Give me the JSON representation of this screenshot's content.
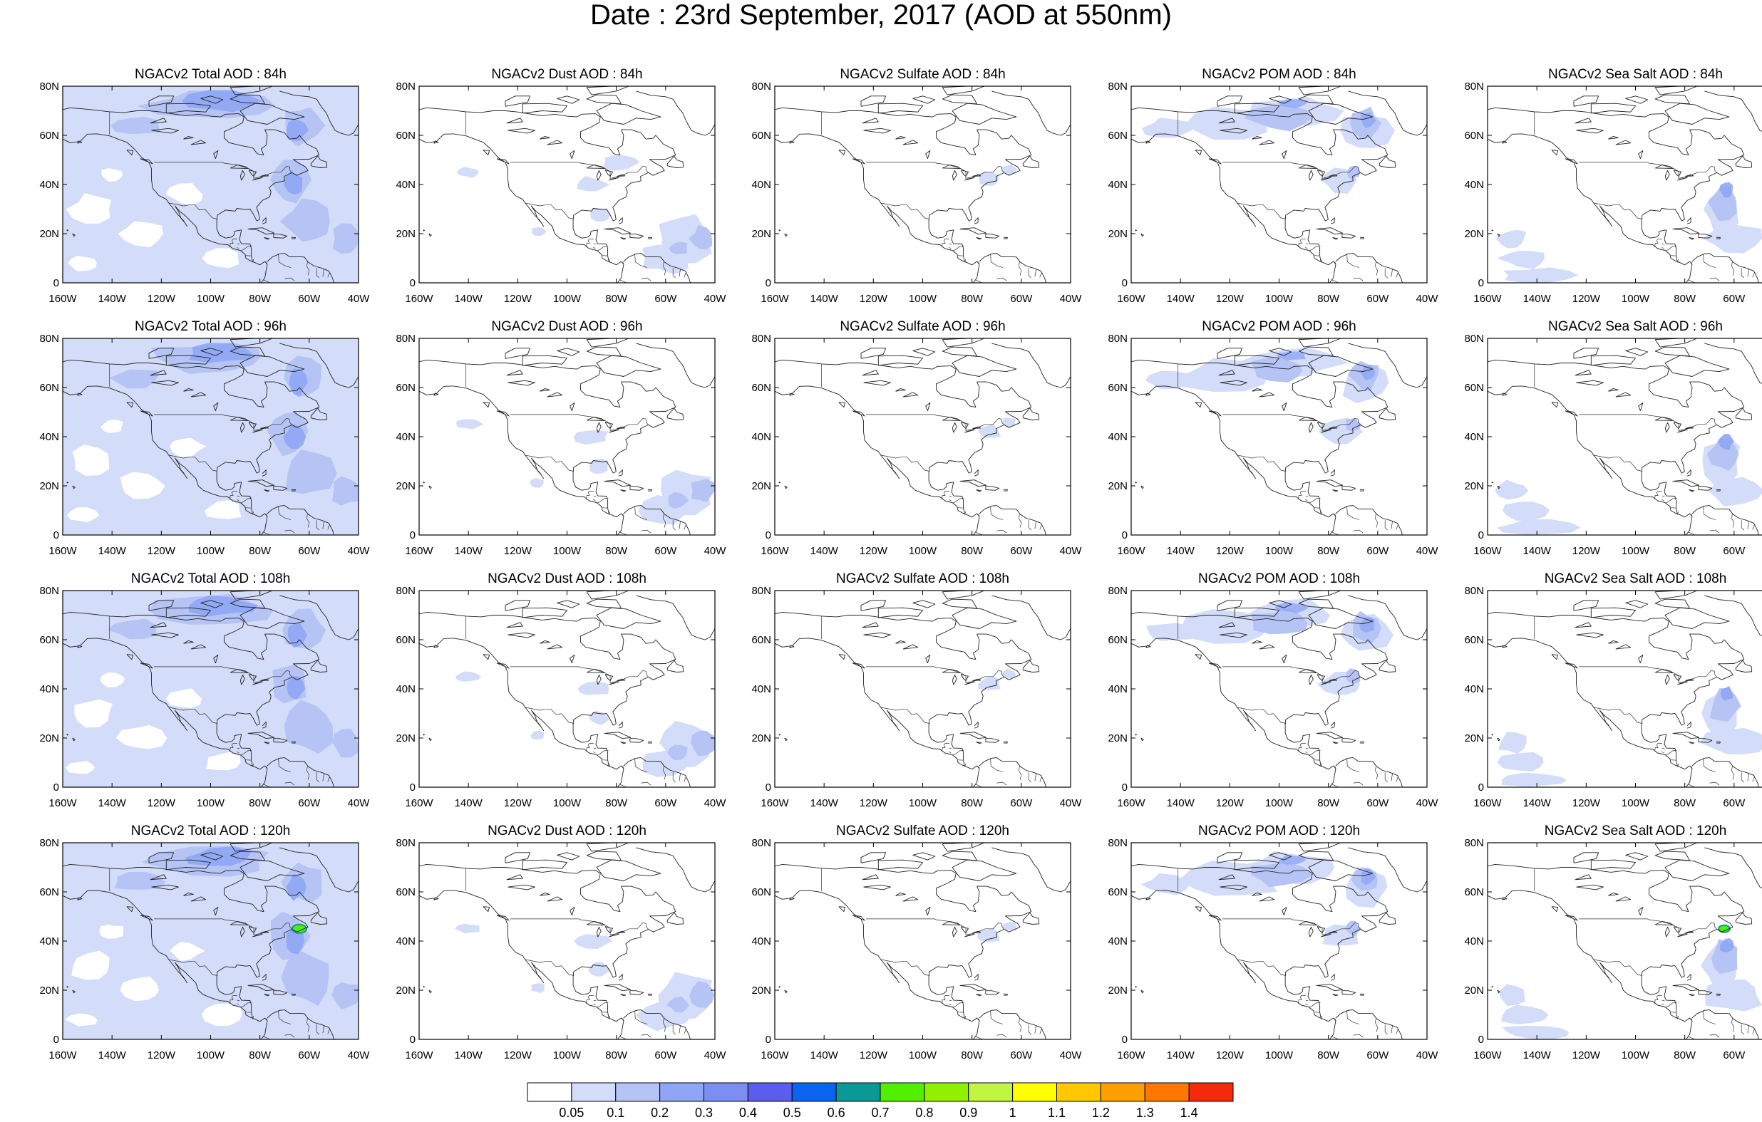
{
  "title": "Date : 23rd September, 2017 (AOD at 550nm)",
  "axis": {
    "lat_labels": [
      "0",
      "20N",
      "40N",
      "60N",
      "80N"
    ],
    "lon_labels": [
      "160W",
      "140W",
      "120W",
      "100W",
      "80W",
      "60W",
      "40W"
    ]
  },
  "panels": [
    [
      "NGACv2 Total AOD : 84h",
      "NGACv2 Dust AOD : 84h",
      "NGACv2 Sulfate AOD : 84h",
      "NGACv2 POM AOD : 84h",
      "NGACv2 Sea Salt AOD : 84h"
    ],
    [
      "NGACv2 Total AOD : 96h",
      "NGACv2 Dust AOD : 96h",
      "NGACv2 Sulfate AOD : 96h",
      "NGACv2 POM AOD : 96h",
      "NGACv2 Sea Salt AOD : 96h"
    ],
    [
      "NGACv2 Total AOD : 108h",
      "NGACv2 Dust AOD : 108h",
      "NGACv2 Sulfate AOD : 108h",
      "NGACv2 POM AOD : 108h",
      "NGACv2 Sea Salt AOD : 108h"
    ],
    [
      "NGACv2 Total AOD : 120h",
      "NGACv2 Dust AOD : 120h",
      "NGACv2 Sulfate AOD : 120h",
      "NGACv2 POM AOD : 120h",
      "NGACv2 Sea Salt  AOD : 120h"
    ]
  ],
  "colorbar": {
    "labels": [
      "0.05",
      "0.1",
      "0.2",
      "0.3",
      "0.4",
      "0.5",
      "0.6",
      "0.7",
      "0.8",
      "0.9",
      "1",
      "1.1",
      "1.2",
      "1.3",
      "1.4"
    ],
    "colors": [
      "#ffffff",
      "#d3dcf8",
      "#b6c4f5",
      "#8ea6f5",
      "#7c8ef2",
      "#5a5eea",
      "#0a64f0",
      "#0c9896",
      "#52f000",
      "#90f000",
      "#c0f542",
      "#ffff00",
      "#ffc800",
      "#ffa000",
      "#ff7800",
      "#f52a0a"
    ]
  }
}
